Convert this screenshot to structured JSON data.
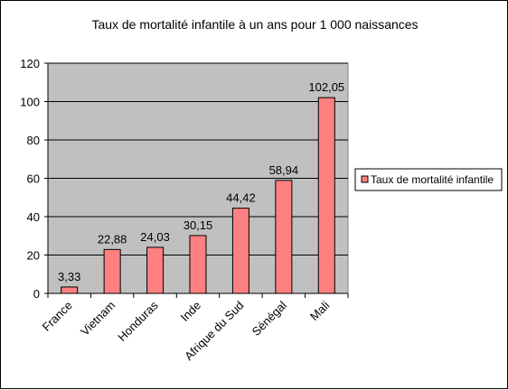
{
  "chart_data": {
    "type": "bar",
    "title": "Taux de mortalité infantile à un ans pour 1 000 naissances",
    "categories": [
      "France",
      "Vietnam",
      "Honduras",
      "Inde",
      "Afrique du Sud",
      "Sénégal",
      "Mali"
    ],
    "series": [
      {
        "name": "Taux de mortalité infantile",
        "values": [
          3.33,
          22.88,
          24.03,
          30.15,
          44.42,
          58.94,
          102.05
        ],
        "labels": [
          "3,33",
          "22,88",
          "24,03",
          "30,15",
          "44,42",
          "58,94",
          "102,05"
        ]
      }
    ],
    "y_ticks": [
      "0",
      "20",
      "40",
      "60",
      "80",
      "100",
      "120"
    ],
    "ylim": [
      0,
      120
    ],
    "grid": true,
    "legend": "right",
    "colors": {
      "bar_fill": "#ff8080",
      "bar_stroke": "#000000",
      "plot_background": "#c0c0c0",
      "gridline": "#000000"
    }
  }
}
